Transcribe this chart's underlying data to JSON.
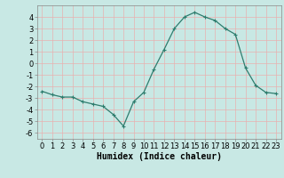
{
  "x": [
    0,
    1,
    2,
    3,
    4,
    5,
    6,
    7,
    8,
    9,
    10,
    11,
    12,
    13,
    14,
    15,
    16,
    17,
    18,
    19,
    20,
    21,
    22,
    23
  ],
  "y": [
    -2.4,
    -2.7,
    -2.9,
    -2.9,
    -3.3,
    -3.5,
    -3.7,
    -4.4,
    -5.4,
    -3.3,
    -2.5,
    -0.5,
    1.2,
    3.0,
    4.0,
    4.4,
    4.0,
    3.7,
    3.0,
    2.5,
    -0.4,
    -1.9,
    -2.5,
    -2.6
  ],
  "line_color": "#2e7d6e",
  "marker": "+",
  "marker_size": 3,
  "bg_color": "#c8e8e4",
  "grid_color": "#e8b0b0",
  "xlabel": "Humidex (Indice chaleur)",
  "xlim": [
    -0.5,
    23.5
  ],
  "ylim": [
    -6.5,
    5.0
  ],
  "yticks": [
    -6,
    -5,
    -4,
    -3,
    -2,
    -1,
    0,
    1,
    2,
    3,
    4
  ],
  "xticks": [
    0,
    1,
    2,
    3,
    4,
    5,
    6,
    7,
    8,
    9,
    10,
    11,
    12,
    13,
    14,
    15,
    16,
    17,
    18,
    19,
    20,
    21,
    22,
    23
  ],
  "xlabel_fontsize": 7,
  "tick_fontsize": 6,
  "linewidth": 0.9,
  "markeredgewidth": 0.8
}
